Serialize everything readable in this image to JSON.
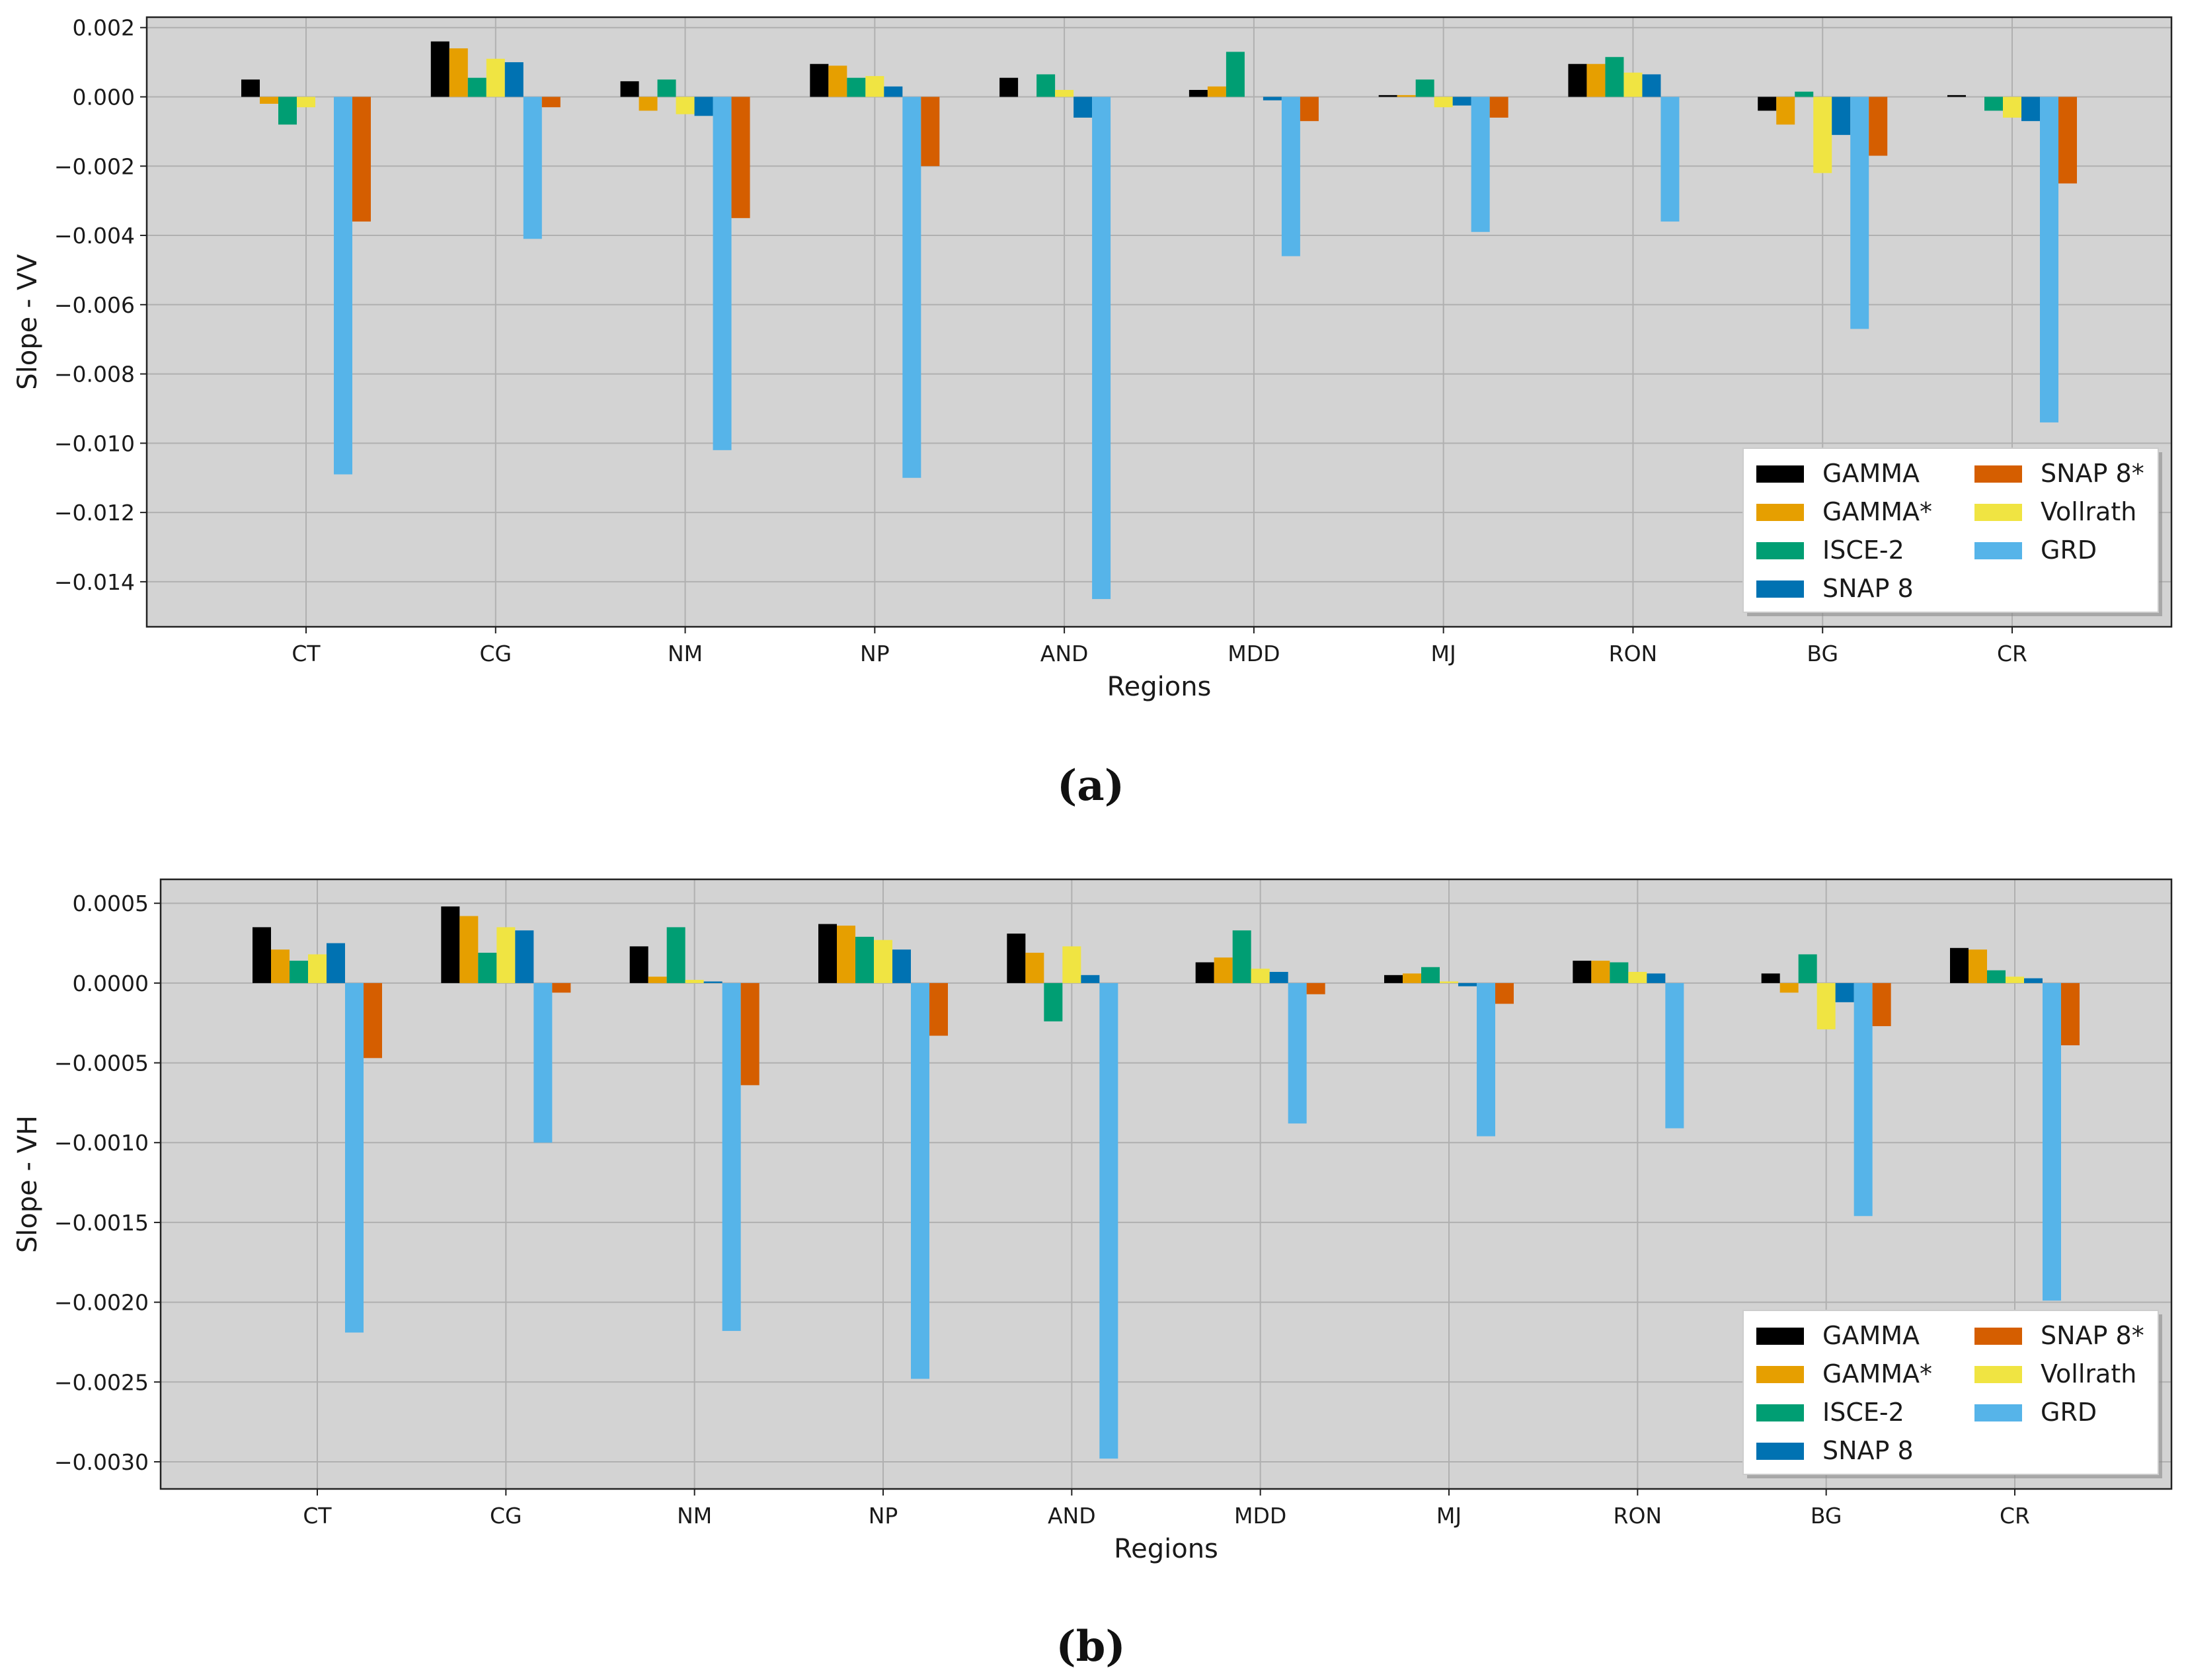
{
  "colors": {
    "GAMMA": "#000000",
    "GAMMA*": "#e69f00",
    "ISCE-2": "#009e73",
    "SNAP 8": "#0072b2",
    "SNAP 8*": "#d55e00",
    "Vollrath": "#f0e442",
    "GRD": "#56b4e9",
    "plot_bg": "#d3d3d3",
    "grid": "#b0b0b0"
  },
  "chart_data": [
    {
      "type": "bar",
      "caption": "(a)",
      "title": "",
      "xlabel": "Regions",
      "ylabel": "Slope - VV",
      "ylim": [
        -0.0153,
        0.0023
      ],
      "yticks": [
        0.002,
        0.0,
        -0.002,
        -0.004,
        -0.006,
        -0.008,
        -0.01,
        -0.012,
        -0.014
      ],
      "ytick_labels": [
        "0.002",
        "0.000",
        "−0.002",
        "−0.004",
        "−0.006",
        "−0.008",
        "−0.010",
        "−0.012",
        "−0.014"
      ],
      "grid": true,
      "legend_position": "bottom-right",
      "categories": [
        "CT",
        "CG",
        "NM",
        "NP",
        "AND",
        "MDD",
        "MJ",
        "RON",
        "BG",
        "CR"
      ],
      "series": [
        {
          "name": "GAMMA",
          "values": [
            0.0005,
            0.0016,
            0.00045,
            0.00095,
            0.00055,
            0.0002,
            5e-05,
            0.00095,
            -0.0004,
            5e-05
          ]
        },
        {
          "name": "GAMMA*",
          "values": [
            -0.0002,
            0.0014,
            -0.0004,
            0.0009,
            0.0,
            0.0003,
            5e-05,
            0.00095,
            -0.0008,
            0.0
          ]
        },
        {
          "name": "ISCE-2",
          "values": [
            -0.0008,
            0.00055,
            0.0005,
            0.00055,
            0.00065,
            0.0013,
            0.0005,
            0.00115,
            0.00015,
            -0.0004
          ]
        },
        {
          "name": "Vollrath",
          "values": [
            -0.0003,
            0.0011,
            -0.0005,
            0.0006,
            0.0002,
            0.0,
            -0.0003,
            0.0007,
            -0.0022,
            -0.0006
          ]
        },
        {
          "name": "SNAP 8",
          "values": [
            0.0,
            0.001,
            -0.00055,
            0.0003,
            -0.0006,
            -0.0001,
            -0.00025,
            0.00065,
            -0.0011,
            -0.0007
          ]
        },
        {
          "name": "GRD",
          "values": [
            -0.0109,
            -0.0041,
            -0.0102,
            -0.011,
            -0.0145,
            -0.0046,
            -0.0039,
            -0.0036,
            -0.0067,
            -0.0094
          ]
        },
        {
          "name": "SNAP 8*",
          "values": [
            -0.0036,
            -0.0003,
            -0.0035,
            -0.002,
            0.0,
            -0.0007,
            -0.0006,
            0.0,
            -0.0017,
            -0.0025
          ]
        }
      ]
    },
    {
      "type": "bar",
      "caption": "(b)",
      "title": "",
      "xlabel": "Regions",
      "ylabel": "Slope - VH",
      "ylim": [
        -0.00317,
        0.00065
      ],
      "yticks": [
        0.0005,
        0.0,
        -0.0005,
        -0.001,
        -0.0015,
        -0.002,
        -0.0025,
        -0.003
      ],
      "ytick_labels": [
        "0.0005",
        "0.0000",
        "−0.0005",
        "−0.0010",
        "−0.0015",
        "−0.0020",
        "−0.0025",
        "−0.0030"
      ],
      "grid": true,
      "legend_position": "bottom-right",
      "categories": [
        "CT",
        "CG",
        "NM",
        "NP",
        "AND",
        "MDD",
        "MJ",
        "RON",
        "BG",
        "CR"
      ],
      "series": [
        {
          "name": "GAMMA",
          "values": [
            0.00035,
            0.00048,
            0.00023,
            0.00037,
            0.00031,
            0.00013,
            5e-05,
            0.00014,
            6e-05,
            0.00022
          ]
        },
        {
          "name": "GAMMA*",
          "values": [
            0.00021,
            0.00042,
            4e-05,
            0.00036,
            0.00019,
            0.00016,
            6e-05,
            0.00014,
            -6e-05,
            0.00021
          ]
        },
        {
          "name": "ISCE-2",
          "values": [
            0.00014,
            0.00019,
            0.00035,
            0.00029,
            -0.00024,
            0.00033,
            0.0001,
            0.00013,
            0.00018,
            8e-05
          ]
        },
        {
          "name": "Vollrath",
          "values": [
            0.00018,
            0.00035,
            2e-05,
            0.00027,
            0.00023,
            9e-05,
            1e-05,
            7e-05,
            -0.00029,
            4e-05
          ]
        },
        {
          "name": "SNAP 8",
          "values": [
            0.00025,
            0.00033,
            1e-05,
            0.00021,
            5e-05,
            7e-05,
            -2e-05,
            6e-05,
            -0.00012,
            3e-05
          ]
        },
        {
          "name": "GRD",
          "values": [
            -0.00219,
            -0.001,
            -0.00218,
            -0.00248,
            -0.00298,
            -0.00088,
            -0.00096,
            -0.00091,
            -0.00146,
            -0.00199
          ]
        },
        {
          "name": "SNAP 8*",
          "values": [
            -0.00047,
            -6e-05,
            -0.00064,
            -0.00033,
            0.0,
            -7e-05,
            -0.00013,
            0.0,
            -0.00027,
            -0.00039
          ]
        }
      ]
    }
  ],
  "legend": {
    "columns": [
      [
        "GAMMA",
        "GAMMA*",
        "ISCE-2",
        "SNAP 8"
      ],
      [
        "SNAP 8*",
        "Vollrath",
        "GRD"
      ]
    ]
  }
}
